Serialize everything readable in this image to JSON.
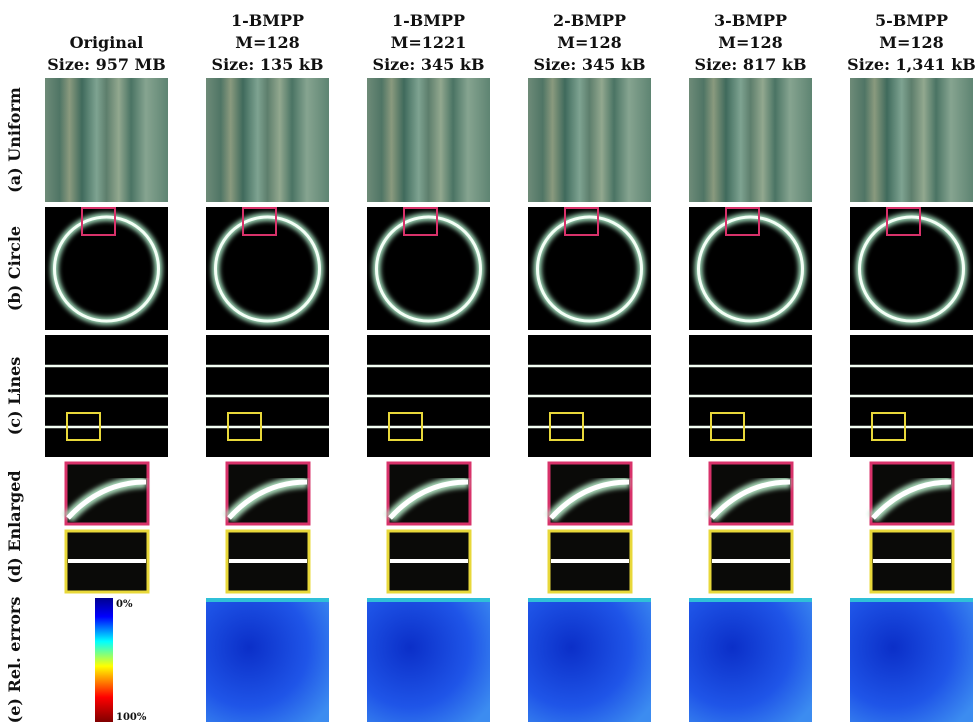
{
  "figure": {
    "columns": [
      {
        "header": [
          "Original",
          "Size: 957 MB"
        ]
      },
      {
        "header": [
          "1-BMPP",
          "M=128",
          "Size: 135 kB"
        ]
      },
      {
        "header": [
          "1-BMPP",
          "M=1221",
          "Size: 345 kB"
        ]
      },
      {
        "header": [
          "2-BMPP",
          "M=128",
          "Size: 345 kB"
        ]
      },
      {
        "header": [
          "3-BMPP",
          "M=128",
          "Size: 817 kB"
        ]
      },
      {
        "header": [
          "5-BMPP",
          "M=128",
          "Size: 1,341 kB"
        ]
      }
    ],
    "rows": [
      "(a) Uniform",
      "(b) Circle",
      "(c) Lines",
      "(d) Enlarged",
      "(e) Rel. errors"
    ],
    "colorbar": {
      "min_label": "0%",
      "max_label": "100%"
    }
  }
}
